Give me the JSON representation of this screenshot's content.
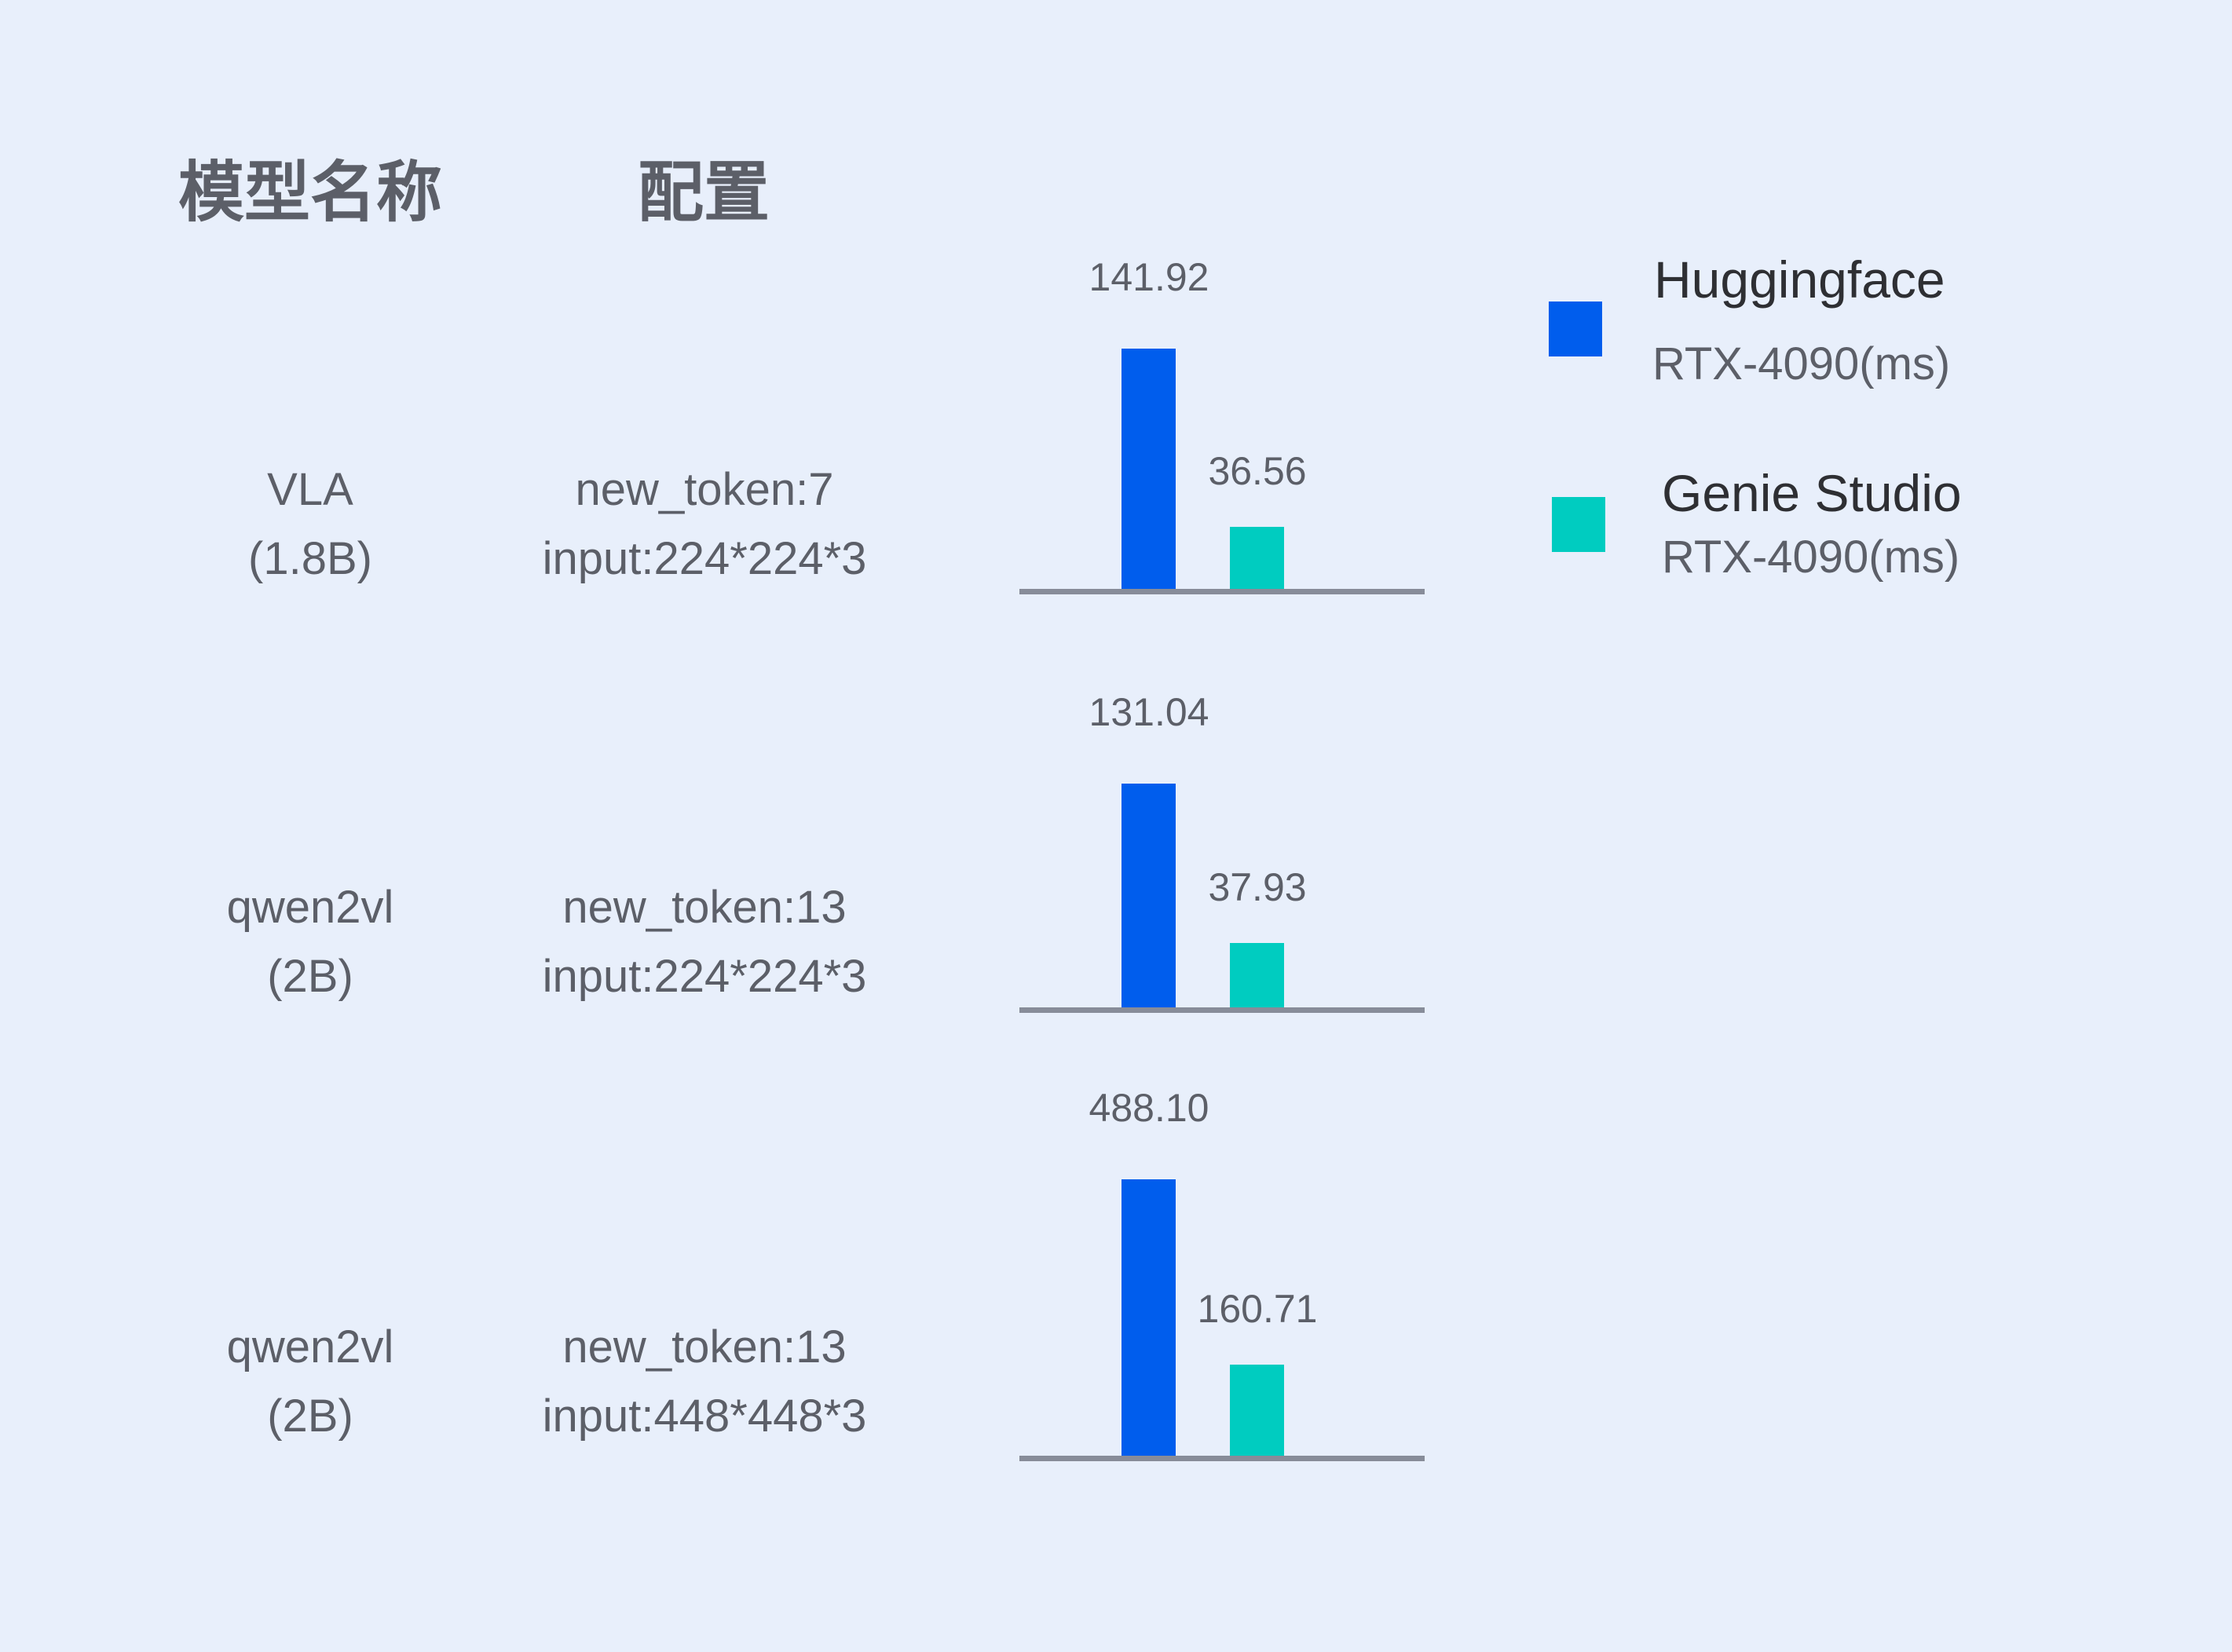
{
  "headers": {
    "model": "模型名称",
    "config": "配置"
  },
  "colors": {
    "huggingface": "#005ded",
    "genie": "#00ccc0",
    "baseline": "#878c99",
    "background": "#e8effb"
  },
  "legend": [
    {
      "name": "Huggingface",
      "unit": "RTX-4090(ms)",
      "color": "#005ded"
    },
    {
      "name": "Genie Studio",
      "unit": "RTX-4090(ms)",
      "color": "#00ccc0"
    }
  ],
  "rows": [
    {
      "model": "VLA",
      "size": "(1.8B)",
      "config1": "new_token:7",
      "config2": "input:224*224*3"
    },
    {
      "model": "qwen2vl",
      "size": "(2B)",
      "config1": "new_token:13",
      "config2": "input:224*224*3"
    },
    {
      "model": "qwen2vl",
      "size": "(2B)",
      "config1": "new_token:13",
      "config2": "input:448*448*3"
    }
  ],
  "chart_data": {
    "type": "bar",
    "categories": [
      "VLA (1.8B) new_token:7 input:224*224*3",
      "qwen2vl (2B) new_token:13 input:224*224*3",
      "qwen2vl (2B) new_token:13 input:448*448*3"
    ],
    "series": [
      {
        "name": "Huggingface RTX-4090(ms)",
        "values": [
          141.92,
          131.04,
          488.1
        ],
        "labels": [
          "141.92",
          "131.04",
          "488.10"
        ]
      },
      {
        "name": "Genie Studio RTX-4090(ms)",
        "values": [
          36.56,
          37.93,
          160.71
        ],
        "labels": [
          "36.56",
          "37.93",
          "160.71"
        ]
      }
    ],
    "legend_position": "right",
    "grid": false
  }
}
